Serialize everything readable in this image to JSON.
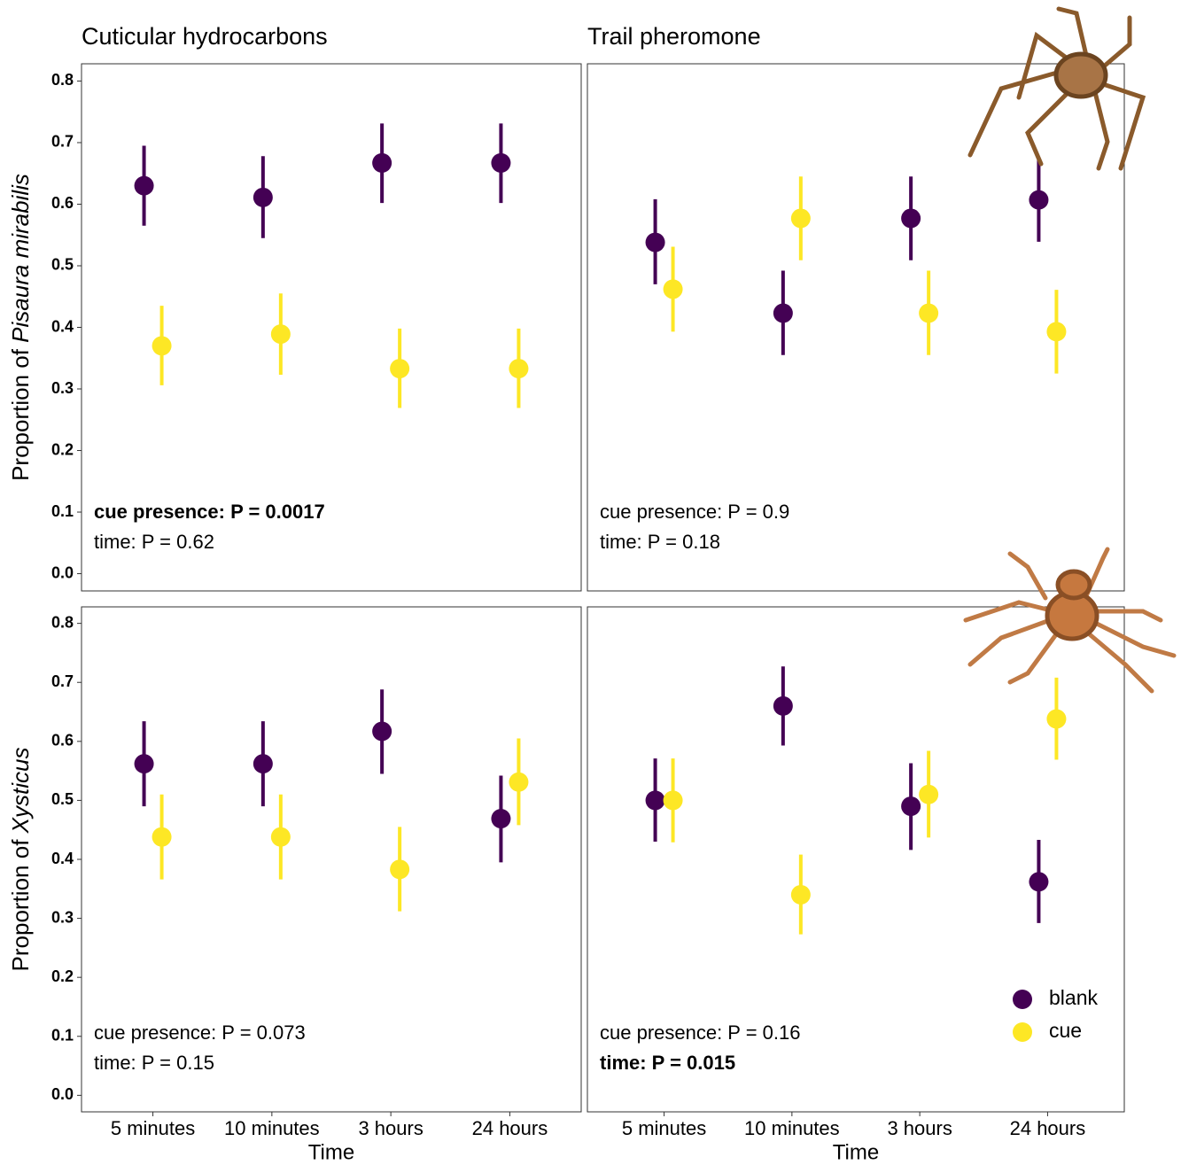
{
  "chart_data": [
    {
      "type": "pointrange",
      "title": "Cuticular hydrocarbons",
      "ylabel": {
        "text": "Proportion of",
        "species": "Pisaura mirabilis"
      },
      "categories": [
        null,
        null,
        null,
        null
      ],
      "series": [
        {
          "color": "#440154",
          "values": [
            0.63,
            0.611,
            0.667,
            0.667
          ],
          "lower": [
            0.565,
            0.545,
            0.602,
            0.602
          ],
          "upper": [
            0.695,
            0.678,
            0.731,
            0.731
          ]
        },
        {
          "color": "#FDE725",
          "values": [
            0.37,
            0.389,
            0.333,
            0.333
          ],
          "lower": [
            0.306,
            0.323,
            0.269,
            0.269
          ],
          "upper": [
            0.435,
            0.455,
            0.398,
            0.398
          ]
        }
      ],
      "ylim": [
        -0.028,
        0.828
      ],
      "yticks": [
        {
          "value": 0,
          "label": "0.0"
        },
        0.1,
        0.2,
        0.3,
        0.4,
        0.5,
        0.6,
        0.7,
        0.8
      ],
      "annotations": [
        {
          "text": "cue presence: P = 0.0017",
          "bold": true
        },
        {
          "text": "time: P = 0.62",
          "bold": false
        }
      ]
    },
    {
      "type": "pointrange",
      "title": "Trail pheromone",
      "categories": [
        null,
        null,
        null,
        null
      ],
      "series": [
        {
          "color": "#440154",
          "values": [
            0.538,
            0.423,
            0.577,
            0.607
          ],
          "lower": [
            0.47,
            0.355,
            0.509,
            0.539
          ],
          "upper": [
            0.608,
            0.492,
            0.645,
            0.676
          ]
        },
        {
          "color": "#FDE725",
          "values": [
            0.462,
            0.577,
            0.423,
            0.393
          ],
          "lower": [
            0.393,
            0.509,
            0.355,
            0.325
          ],
          "upper": [
            0.531,
            0.645,
            0.492,
            0.461
          ]
        }
      ],
      "ylim": [
        -0.028,
        0.828
      ],
      "annotations": [
        {
          "text": "cue presence: P = 0.9",
          "bold": false
        },
        {
          "text": "time: P = 0.18",
          "bold": false
        }
      ]
    },
    {
      "type": "pointrange",
      "ylabel": {
        "text": "Proportion of",
        "species": "Xysticus"
      },
      "xlabel": "Time",
      "categories": [
        "5 minutes",
        "10 minutes",
        "3 hours",
        "24 hours"
      ],
      "series": [
        {
          "color": "#440154",
          "values": [
            0.562,
            0.562,
            0.617,
            0.469
          ],
          "lower": [
            0.49,
            0.49,
            0.545,
            0.395
          ],
          "upper": [
            0.634,
            0.634,
            0.688,
            0.542
          ]
        },
        {
          "color": "#FDE725",
          "values": [
            0.438,
            0.438,
            0.383,
            0.531
          ],
          "lower": [
            0.366,
            0.366,
            0.312,
            0.458
          ],
          "upper": [
            0.51,
            0.51,
            0.455,
            0.605
          ]
        }
      ],
      "ylim": [
        -0.028,
        0.828
      ],
      "yticks": [
        {
          "value": 0,
          "label": "0.0"
        },
        0.1,
        0.2,
        0.3,
        0.4,
        0.5,
        0.6,
        0.7,
        0.8
      ],
      "annotations": [
        {
          "text": "cue presence: P = 0.073",
          "bold": false
        },
        {
          "text": "time: P = 0.15",
          "bold": false
        }
      ]
    },
    {
      "type": "pointrange",
      "xlabel": "Time",
      "categories": [
        "5 minutes",
        "10 minutes",
        "3 hours",
        "24 hours"
      ],
      "series": [
        {
          "name": "blank",
          "color": "#440154",
          "values": [
            0.5,
            0.66,
            0.49,
            0.362
          ],
          "lower": [
            0.43,
            0.593,
            0.416,
            0.292
          ],
          "upper": [
            0.571,
            0.727,
            0.563,
            0.433
          ]
        },
        {
          "name": "cue",
          "color": "#FDE725",
          "values": [
            0.5,
            0.34,
            0.51,
            0.638
          ],
          "lower": [
            0.429,
            0.273,
            0.437,
            0.569
          ],
          "upper": [
            0.571,
            0.408,
            0.584,
            0.708
          ]
        }
      ],
      "ylim": [
        -0.028,
        0.828
      ],
      "legend": "bottom-right",
      "annotations": [
        {
          "text": "cue presence: P = 0.16",
          "bold": false
        },
        {
          "text": "time: P = 0.015",
          "bold": true
        }
      ]
    }
  ]
}
